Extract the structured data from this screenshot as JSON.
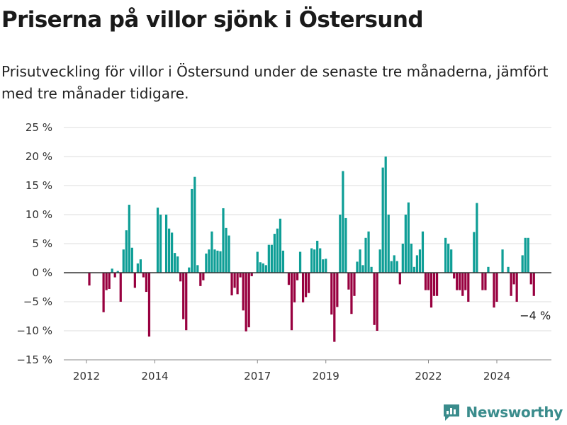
{
  "title": "Priserna på villor sjönk i Östersund",
  "subtitle": "Prisutveckling för villor i Östersund under de senaste tre månaderna, jämfört med tre månader tidigare.",
  "brand": {
    "name": "Newsworthy",
    "icon": "newsworthy-logo-icon"
  },
  "colors": {
    "positive": "#0e9e96",
    "negative": "#98003f",
    "grid": "#dddddd",
    "zero_line": "#333333"
  },
  "chart_data": {
    "type": "bar",
    "title": "",
    "xlabel": "",
    "ylabel": "",
    "ylim": [
      -15,
      25
    ],
    "yticks": [
      25,
      20,
      15,
      10,
      5,
      0,
      -5,
      -10,
      -15
    ],
    "ytick_labels": [
      "25 %",
      "20 %",
      "15 %",
      "10 %",
      "5 %",
      "0 %",
      "−5 %",
      "−10 %",
      "−15 %"
    ],
    "xticks": [
      "2012",
      "2014",
      "2017",
      "2019",
      "2022",
      "2024"
    ],
    "grid": true,
    "series": [
      {
        "start": "2012-01",
        "frequency": "monthly",
        "values": [
          0,
          -2.2,
          0,
          0,
          0,
          0,
          -6.8,
          -3,
          -2.8,
          0.7,
          -0.8,
          0.3,
          -5,
          4,
          7.3,
          11.7,
          4.3,
          -2.6,
          1.6,
          2.3,
          -0.8,
          -3.3,
          -11,
          0,
          0,
          11.2,
          10,
          0,
          10,
          7.6,
          6.9,
          3.4,
          2.8,
          -1.5,
          -8,
          -9.9,
          0.9,
          14.4,
          16.5,
          1.3,
          -2.3,
          -1.3,
          3.3,
          4,
          7.1,
          4,
          3.8,
          3.7,
          11.1,
          7.7,
          6.4,
          -3.9,
          -2.6,
          -3.7,
          -0.8,
          -6.5,
          -10.1,
          -9.4,
          -0.6,
          0,
          3.6,
          1.8,
          1.6,
          1.3,
          4.8,
          4.8,
          6.7,
          7.6,
          9.3,
          3.8,
          0,
          -2.1,
          -9.9,
          -5.1,
          -1.3,
          3.6,
          -5.1,
          -4.2,
          -3.5,
          4.2,
          4,
          5.5,
          4.2,
          2.3,
          2.4,
          0,
          -7.2,
          -11.9,
          -5.9,
          10,
          17.5,
          9.4,
          -2.9,
          -7.1,
          -4,
          1.9,
          4,
          1.3,
          6,
          7.1,
          1,
          -9,
          -10,
          4,
          18.1,
          20,
          10,
          2,
          3,
          2,
          -2,
          5,
          10,
          12.1,
          5,
          1,
          3,
          4,
          7.1,
          -3,
          -3,
          -6,
          -4,
          -4,
          0,
          0,
          6,
          5,
          4,
          -1,
          -3,
          -3,
          -4,
          -3,
          -5,
          0,
          7,
          12,
          0,
          -3,
          -3,
          1,
          0,
          -6,
          -5,
          0,
          4,
          0,
          1,
          -4,
          -2,
          -5,
          0,
          3,
          6,
          6,
          -2,
          -4
        ]
      }
    ],
    "annotations": [
      {
        "text": "−4 %",
        "at": "last"
      }
    ]
  }
}
